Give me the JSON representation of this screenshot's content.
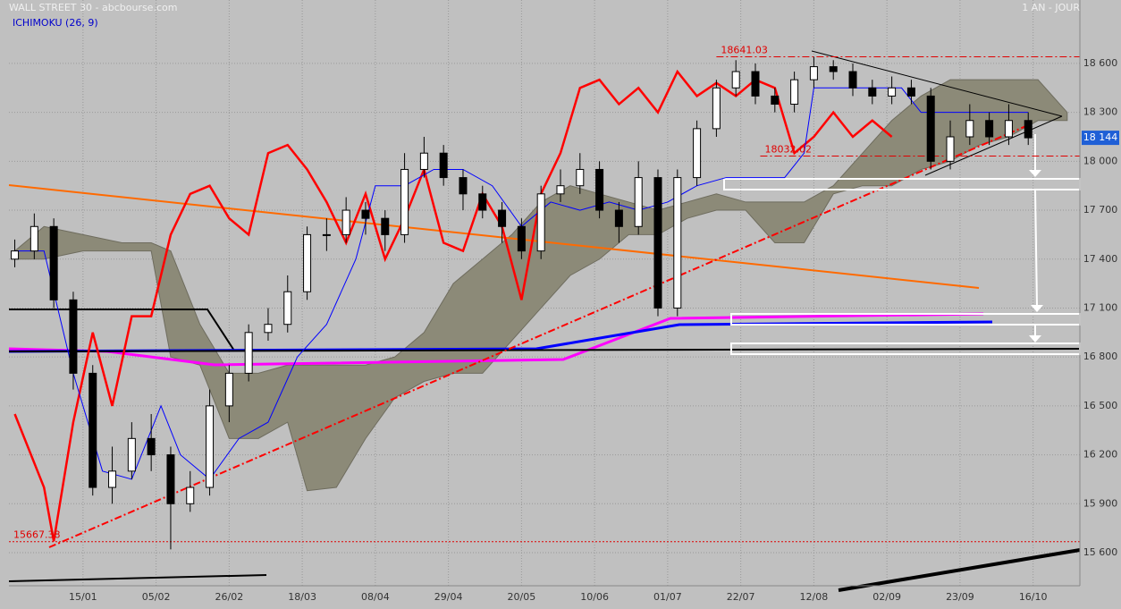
{
  "chart_data": {
    "type": "candlestick",
    "title": "WALL STREET 30 - abcbourse.com",
    "period": "1 AN - JOUR",
    "indicator": "ICHIMOKU (26, 9)",
    "xlim": [
      -15.2,
      204.6
    ],
    "ylim": [
      15397,
      18989
    ],
    "xticks": [
      {
        "value": 0,
        "label": "15/01"
      },
      {
        "value": 15,
        "label": "05/02"
      },
      {
        "value": 30,
        "label": "26/02"
      },
      {
        "value": 45,
        "label": "18/03"
      },
      {
        "value": 60,
        "label": "08/04"
      },
      {
        "value": 75,
        "label": "29/04"
      },
      {
        "value": 90,
        "label": "20/05"
      },
      {
        "value": 105,
        "label": "10/06"
      },
      {
        "value": 120,
        "label": "01/07"
      },
      {
        "value": 135,
        "label": "22/07"
      },
      {
        "value": 150,
        "label": "12/08"
      },
      {
        "value": 165,
        "label": "02/09"
      },
      {
        "value": 180,
        "label": "23/09"
      },
      {
        "value": 195,
        "label": "16/10"
      }
    ],
    "yticks": [
      {
        "value": 15600,
        "label": "15 600"
      },
      {
        "value": 15900,
        "label": "15 900"
      },
      {
        "value": 16200,
        "label": "16 200"
      },
      {
        "value": 16500,
        "label": "16 500"
      },
      {
        "value": 16800,
        "label": "16 800"
      },
      {
        "value": 17100,
        "label": "17 100"
      },
      {
        "value": 17400,
        "label": "17 400"
      },
      {
        "value": 17700,
        "label": "17 700"
      },
      {
        "value": 18000,
        "label": "18 000"
      },
      {
        "value": 18300,
        "label": "18 300"
      },
      {
        "value": 18600,
        "label": "18 600"
      }
    ],
    "grid": true,
    "last_value": {
      "value": 18144,
      "label": "18 144"
    },
    "levels": [
      {
        "value": 18641.03,
        "start": 130
      },
      {
        "value": 18032.02,
        "start": 139
      },
      {
        "value": 15667.38,
        "start": -15.2
      }
    ],
    "candles": {
      "x": [
        -14,
        -10,
        -6,
        -2,
        2,
        6,
        10,
        14,
        18,
        22,
        26,
        30,
        34,
        38,
        42,
        46,
        50,
        54,
        58,
        62,
        66,
        70,
        74,
        78,
        82,
        86,
        90,
        94,
        98,
        102,
        106,
        110,
        114,
        118,
        122,
        126,
        130,
        134,
        138,
        142,
        146,
        150,
        154,
        158,
        162,
        166,
        170,
        174,
        178,
        182,
        186,
        190,
        194
      ],
      "open": [
        17400,
        17450,
        17600,
        17150,
        16700,
        16000,
        16100,
        16300,
        16200,
        15900,
        16000,
        16500,
        16700,
        16950,
        17000,
        17200,
        17550,
        17550,
        17700,
        17650,
        17550,
        17950,
        18050,
        17900,
        17800,
        17700,
        17600,
        17450,
        17800,
        17850,
        17950,
        17700,
        17600,
        17900,
        17100,
        17900,
        18200,
        18450,
        18550,
        18400,
        18350,
        18500,
        18580,
        18550,
        18450,
        18400,
        18450,
        18400,
        18000,
        18150,
        18250,
        18150,
        18250
      ],
      "high": [
        17520,
        17680,
        17650,
        17200,
        16750,
        16250,
        16400,
        16450,
        16250,
        16100,
        16600,
        16750,
        17000,
        17100,
        17300,
        17600,
        17650,
        17780,
        17750,
        17700,
        18050,
        18150,
        18100,
        17950,
        17850,
        17750,
        17650,
        17850,
        17950,
        18050,
        18000,
        17750,
        18000,
        17950,
        17950,
        18250,
        18500,
        18620,
        18600,
        18450,
        18550,
        18640,
        18620,
        18600,
        18500,
        18520,
        18500,
        18450,
        18250,
        18350,
        18300,
        18350,
        18300
      ],
      "low": [
        17350,
        17400,
        17100,
        16600,
        15950,
        15900,
        16050,
        16100,
        15620,
        15850,
        15950,
        16400,
        16650,
        16900,
        16950,
        17150,
        17450,
        17500,
        17550,
        17450,
        17500,
        17900,
        17850,
        17700,
        17650,
        17500,
        17400,
        17400,
        17750,
        17800,
        17650,
        17500,
        17550,
        17050,
        17050,
        17850,
        18150,
        18400,
        18350,
        18300,
        18300,
        18450,
        18500,
        18400,
        18350,
        18350,
        18350,
        17950,
        17950,
        18100,
        18100,
        18100,
        18100
      ],
      "close": [
        17450,
        17600,
        17150,
        16700,
        16000,
        16100,
        16300,
        16200,
        15900,
        16000,
        16500,
        16700,
        16950,
        17000,
        17200,
        17550,
        17550,
        17700,
        17650,
        17550,
        17950,
        18050,
        17900,
        17800,
        17700,
        17600,
        17450,
        17800,
        17850,
        17950,
        17700,
        17600,
        17900,
        17100,
        17900,
        18200,
        18450,
        18550,
        18400,
        18350,
        18500,
        18580,
        18550,
        18450,
        18400,
        18450,
        18400,
        18000,
        18150,
        18250,
        18150,
        18250,
        18144
      ]
    },
    "cloud": {
      "color": "#8c8a78",
      "x": [
        -14,
        -8,
        0,
        8,
        14,
        18,
        24,
        30,
        36,
        42,
        46,
        52,
        58,
        64,
        70,
        76,
        82,
        88,
        94,
        100,
        106,
        112,
        118,
        124,
        130,
        136,
        142,
        148,
        154,
        160,
        166,
        172,
        178,
        184,
        190,
        196,
        202
      ],
      "upper": [
        17450,
        17600,
        17550,
        17500,
        17500,
        17450,
        17000,
        16700,
        16700,
        16750,
        16750,
        16750,
        16750,
        16800,
        16950,
        17250,
        17400,
        17550,
        17750,
        17850,
        17800,
        17750,
        17700,
        17750,
        17800,
        17750,
        17750,
        17750,
        17850,
        18050,
        18250,
        18400,
        18500,
        18500,
        18500,
        18500,
        18300
      ],
      "lower": [
        17400,
        17400,
        17450,
        17450,
        17450,
        16800,
        16750,
        16300,
        16300,
        16400,
        15980,
        16000,
        16300,
        16550,
        16650,
        16700,
        16700,
        16900,
        17100,
        17300,
        17400,
        17550,
        17550,
        17650,
        17700,
        17700,
        17500,
        17500,
        17800,
        17850,
        17850,
        17950,
        18000,
        18100,
        18150,
        18250,
        18250
      ]
    },
    "series": [
      {
        "color": "#ff0000",
        "x": [
          -14,
          -8,
          -6,
          -2,
          2,
          6,
          10,
          14,
          18,
          22,
          26,
          30,
          34,
          38,
          42,
          46,
          50,
          54,
          58,
          62,
          66,
          70,
          74,
          78,
          82,
          86,
          90,
          94,
          98,
          102,
          106,
          110,
          114,
          118,
          122,
          126,
          130,
          134,
          138,
          142,
          146,
          150,
          154,
          158,
          162,
          166
        ],
        "values": [
          16450,
          16000,
          15670,
          16400,
          16950,
          16500,
          17050,
          17050,
          17550,
          17800,
          17850,
          17650,
          17550,
          18050,
          18100,
          17950,
          17750,
          17500,
          17800,
          17400,
          17650,
          17950,
          17500,
          17450,
          17800,
          17600,
          17150,
          17800,
          18050,
          18450,
          18500,
          18350,
          18450,
          18300,
          18550,
          18400,
          18480,
          18400,
          18500,
          18450,
          18050,
          18150,
          18300,
          18150,
          18250,
          18150
        ]
      },
      {
        "color": "#0000ff",
        "x": [
          -14,
          -8,
          -2,
          4,
          10,
          16,
          20,
          26,
          32,
          38,
          44,
          50,
          56,
          60,
          66,
          72,
          78,
          84,
          90,
          96,
          102,
          108,
          114,
          120,
          126,
          132,
          138,
          144,
          148,
          150,
          156,
          162,
          168,
          172,
          178,
          186,
          194
        ],
        "values": [
          17450,
          17450,
          16700,
          16100,
          16050,
          16500,
          16200,
          16050,
          16300,
          16400,
          16800,
          17000,
          17400,
          17850,
          17850,
          17950,
          17950,
          17850,
          17600,
          17750,
          17700,
          17750,
          17700,
          17750,
          17850,
          17900,
          17900,
          17900,
          18050,
          18450,
          18450,
          18450,
          18450,
          18300,
          18300,
          18300,
          18300
        ]
      }
    ]
  }
}
